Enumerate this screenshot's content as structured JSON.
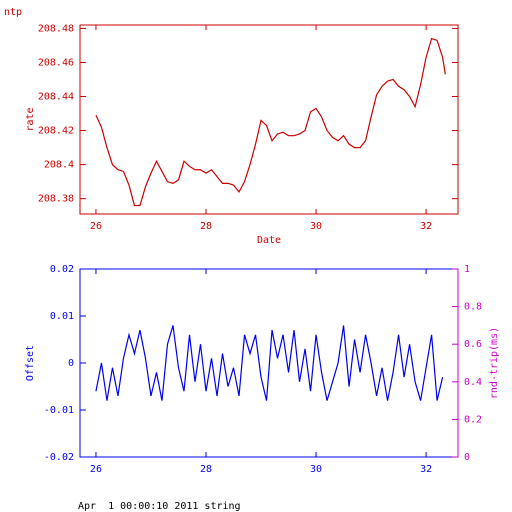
{
  "chart_data": [
    {
      "type": "line",
      "title": "ntp",
      "xlabel": "Date",
      "ylabel": "rate",
      "color": "#cc0000",
      "x": [
        26.0,
        26.1,
        26.2,
        26.3,
        26.4,
        26.5,
        26.6,
        26.7,
        26.8,
        26.9,
        27.0,
        27.1,
        27.2,
        27.3,
        27.4,
        27.5,
        27.6,
        27.7,
        27.8,
        27.9,
        28.0,
        28.1,
        28.2,
        28.3,
        28.4,
        28.5,
        28.6,
        28.7,
        28.8,
        28.9,
        29.0,
        29.1,
        29.2,
        29.3,
        29.4,
        29.5,
        29.6,
        29.7,
        29.8,
        29.9,
        30.0,
        30.1,
        30.2,
        30.3,
        30.4,
        30.5,
        30.6,
        30.7,
        30.8,
        30.9,
        31.0,
        31.1,
        31.2,
        31.3,
        31.4,
        31.5,
        31.6,
        31.7,
        31.8,
        31.9,
        32.0,
        32.1,
        32.2,
        32.3,
        32.35
      ],
      "series": [
        {
          "name": "rate",
          "color": "#cc0000",
          "values": [
            208.429,
            208.422,
            208.41,
            208.4,
            208.397,
            208.396,
            208.388,
            208.376,
            208.376,
            208.387,
            208.395,
            208.402,
            208.396,
            208.39,
            208.389,
            208.391,
            208.402,
            208.399,
            208.397,
            208.397,
            208.395,
            208.397,
            208.393,
            208.389,
            208.389,
            208.388,
            208.384,
            208.39,
            208.4,
            208.412,
            208.426,
            208.423,
            208.414,
            208.418,
            208.419,
            208.417,
            208.417,
            208.418,
            208.42,
            208.431,
            208.433,
            208.428,
            208.42,
            208.416,
            208.414,
            208.417,
            208.412,
            208.41,
            208.41,
            208.414,
            208.428,
            208.441,
            208.446,
            208.449,
            208.45,
            208.446,
            208.444,
            208.44,
            208.434,
            208.447,
            208.463,
            208.474,
            208.473,
            208.463,
            208.453
          ]
        }
      ],
      "xlim": [
        25.71,
        32.58
      ],
      "xticks": [
        26,
        28,
        30,
        32
      ],
      "ylim": [
        208.371,
        208.482
      ],
      "yticks": [
        208.38,
        208.4,
        208.42,
        208.44,
        208.46,
        208.48
      ]
    },
    {
      "type": "line",
      "ylabel": "Offset",
      "y2label": "rnd-trip(ms)",
      "color": "#0000ee",
      "y2color": "#cc00cc",
      "x": [
        26.0,
        26.1,
        26.2,
        26.3,
        26.4,
        26.5,
        26.6,
        26.7,
        26.8,
        26.9,
        27.0,
        27.1,
        27.2,
        27.3,
        27.4,
        27.5,
        27.6,
        27.7,
        27.8,
        27.9,
        28.0,
        28.1,
        28.2,
        28.3,
        28.4,
        28.5,
        28.6,
        28.7,
        28.8,
        28.9,
        29.0,
        29.1,
        29.2,
        29.3,
        29.4,
        29.5,
        29.6,
        29.7,
        29.8,
        29.9,
        30.0,
        30.1,
        30.2,
        30.3,
        30.4,
        30.5,
        30.6,
        30.7,
        30.8,
        30.9,
        31.0,
        31.1,
        31.2,
        31.3,
        31.4,
        31.5,
        31.6,
        31.7,
        31.8,
        31.9,
        32.0,
        32.1,
        32.2,
        32.3
      ],
      "series": [
        {
          "name": "Offset",
          "color": "#0000ee",
          "values": [
            -0.006,
            0.0,
            -0.008,
            -0.001,
            -0.007,
            0.001,
            0.006,
            0.002,
            0.007,
            0.001,
            -0.007,
            -0.002,
            -0.008,
            0.004,
            0.008,
            -0.001,
            -0.006,
            0.006,
            -0.004,
            0.004,
            -0.006,
            0.001,
            -0.007,
            0.002,
            -0.005,
            -0.001,
            -0.007,
            0.006,
            0.002,
            0.006,
            -0.003,
            -0.008,
            0.007,
            0.001,
            0.006,
            -0.002,
            0.007,
            -0.004,
            0.003,
            -0.006,
            0.006,
            -0.002,
            -0.008,
            -0.004,
            0.0,
            0.008,
            -0.005,
            0.005,
            -0.002,
            0.006,
            0.0,
            -0.007,
            -0.001,
            -0.008,
            -0.002,
            0.006,
            -0.003,
            0.004,
            -0.004,
            -0.008,
            -0.001,
            0.006,
            -0.008,
            -0.003
          ]
        }
      ],
      "xlim": [
        25.71,
        32.58
      ],
      "xticks": [
        26,
        28,
        30,
        32
      ],
      "ylim": [
        -0.02,
        0.02
      ],
      "yticks": [
        -0.02,
        -0.01,
        0,
        0.01,
        0.02
      ],
      "y2lim": [
        0,
        1
      ],
      "y2ticks": [
        0,
        0.2,
        0.4,
        0.6,
        0.8,
        1
      ]
    }
  ],
  "footer": "Apr  1 00:00:10 2011 string"
}
